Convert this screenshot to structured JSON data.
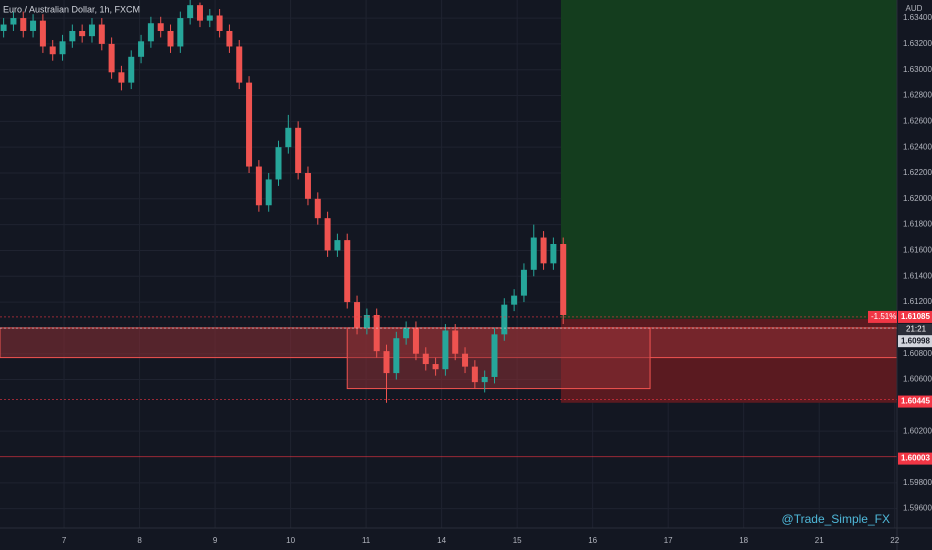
{
  "chart_data": {
    "type": "candlestick",
    "title": "Euro / Australian Dollar, 1h, FXCM",
    "currency": "AUD",
    "watermark": "@Trade_Simple_FX",
    "up_color": "#26a69a",
    "down_color": "#ef5350",
    "x": [
      0.2,
      0.33,
      0.46,
      0.59,
      0.72,
      0.85,
      0.98,
      1.11,
      1.24,
      1.37,
      1.5,
      1.63,
      1.76,
      1.89,
      2.02,
      2.15,
      2.28,
      2.41,
      2.54,
      2.67,
      2.8,
      2.93,
      3.06,
      3.19,
      3.32,
      3.45,
      3.58,
      3.71,
      3.84,
      3.97,
      4.1,
      4.23,
      4.36,
      4.49,
      4.62,
      4.75,
      4.88,
      5.01,
      5.14,
      5.27,
      5.4,
      5.53,
      5.66,
      5.79,
      5.92,
      6.05,
      6.18,
      6.31,
      6.44,
      6.57,
      6.7,
      6.83,
      6.96,
      7.09,
      7.22,
      7.35,
      7.48,
      7.61
    ],
    "open": [
      1.633,
      1.6335,
      1.634,
      1.633,
      1.6338,
      1.6318,
      1.6312,
      1.6322,
      1.633,
      1.6326,
      1.6335,
      1.632,
      1.6298,
      1.629,
      1.631,
      1.6322,
      1.6336,
      1.633,
      1.6318,
      1.634,
      1.635,
      1.6338,
      1.6342,
      1.633,
      1.6318,
      1.629,
      1.6225,
      1.6195,
      1.6215,
      1.624,
      1.6255,
      1.622,
      1.62,
      1.6185,
      1.616,
      1.6168,
      1.612,
      1.61,
      1.611,
      1.6082,
      1.6065,
      1.6092,
      1.61,
      1.608,
      1.6072,
      1.6068,
      1.6098,
      1.608,
      1.607,
      1.6058,
      1.6062,
      1.6095,
      1.6118,
      1.6125,
      1.6145,
      1.617,
      1.615,
      1.6165
    ],
    "high": [
      1.634,
      1.6345,
      1.6345,
      1.6343,
      1.6343,
      1.6323,
      1.6327,
      1.6335,
      1.6335,
      1.634,
      1.634,
      1.6325,
      1.6303,
      1.6315,
      1.6327,
      1.6341,
      1.6341,
      1.6335,
      1.6345,
      1.6354,
      1.6352,
      1.6347,
      1.6347,
      1.6335,
      1.6323,
      1.6295,
      1.623,
      1.622,
      1.6245,
      1.6265,
      1.626,
      1.6225,
      1.6205,
      1.619,
      1.6173,
      1.6173,
      1.6125,
      1.6115,
      1.6115,
      1.6087,
      1.6097,
      1.6105,
      1.6105,
      1.6085,
      1.6077,
      1.6103,
      1.6103,
      1.6085,
      1.6075,
      1.6067,
      1.61,
      1.6123,
      1.613,
      1.615,
      1.618,
      1.6175,
      1.617,
      1.617
    ],
    "low": [
      1.6325,
      1.633,
      1.6325,
      1.6325,
      1.6313,
      1.6307,
      1.6307,
      1.6317,
      1.6321,
      1.6321,
      1.6315,
      1.6293,
      1.6284,
      1.6285,
      1.6305,
      1.6317,
      1.6325,
      1.6313,
      1.6313,
      1.6335,
      1.6333,
      1.6333,
      1.6325,
      1.6313,
      1.6285,
      1.622,
      1.619,
      1.619,
      1.621,
      1.6235,
      1.6215,
      1.6195,
      1.618,
      1.6155,
      1.6155,
      1.6115,
      1.6095,
      1.6095,
      1.6077,
      1.6042,
      1.606,
      1.6087,
      1.6075,
      1.6067,
      1.6063,
      1.6063,
      1.6075,
      1.6065,
      1.6053,
      1.605,
      1.6057,
      1.609,
      1.6113,
      1.612,
      1.614,
      1.6145,
      1.6145,
      1.6103
    ],
    "close": [
      1.6335,
      1.634,
      1.633,
      1.6338,
      1.6318,
      1.6312,
      1.6322,
      1.633,
      1.6326,
      1.6335,
      1.632,
      1.6298,
      1.629,
      1.631,
      1.6322,
      1.6336,
      1.633,
      1.6318,
      1.634,
      1.635,
      1.6338,
      1.6342,
      1.633,
      1.6318,
      1.629,
      1.6225,
      1.6195,
      1.6215,
      1.624,
      1.6255,
      1.622,
      1.62,
      1.6185,
      1.616,
      1.6168,
      1.612,
      1.61,
      1.611,
      1.6082,
      1.6065,
      1.6092,
      1.61,
      1.608,
      1.6072,
      1.6068,
      1.6098,
      1.608,
      1.607,
      1.6058,
      1.6062,
      1.6095,
      1.6118,
      1.6125,
      1.6145,
      1.617,
      1.615,
      1.6165,
      1.611
    ],
    "xlim": [
      0.152,
      12.03
    ],
    "ylim": [
      1.5945,
      1.6354
    ],
    "xticks": [
      {
        "value": 1,
        "label": "7"
      },
      {
        "value": 2,
        "label": "8"
      },
      {
        "value": 3,
        "label": "9"
      },
      {
        "value": 4,
        "label": "10"
      },
      {
        "value": 5,
        "label": "11"
      },
      {
        "value": 6,
        "label": "14"
      },
      {
        "value": 7,
        "label": "15"
      },
      {
        "value": 8,
        "label": "16"
      },
      {
        "value": 9,
        "label": "17"
      },
      {
        "value": 10,
        "label": "18"
      },
      {
        "value": 11,
        "label": "21"
      },
      {
        "value": 12,
        "label": "22"
      }
    ],
    "yticks": [
      {
        "value": 1.634,
        "label": "1.63400"
      },
      {
        "value": 1.632,
        "label": "1.63200"
      },
      {
        "value": 1.63,
        "label": "1.63000"
      },
      {
        "value": 1.628,
        "label": "1.62800"
      },
      {
        "value": 1.626,
        "label": "1.62600"
      },
      {
        "value": 1.624,
        "label": "1.62400"
      },
      {
        "value": 1.622,
        "label": "1.62200"
      },
      {
        "value": 1.62,
        "label": "1.62000"
      },
      {
        "value": 1.618,
        "label": "1.61800"
      },
      {
        "value": 1.616,
        "label": "1.61600"
      },
      {
        "value": 1.614,
        "label": "1.61400"
      },
      {
        "value": 1.612,
        "label": "1.61200"
      },
      {
        "value": 1.608,
        "label": "1.60800"
      },
      {
        "value": 1.606,
        "label": "1.60600"
      },
      {
        "value": 1.602,
        "label": "1.60200"
      },
      {
        "value": 1.598,
        "label": "1.59800"
      },
      {
        "value": 1.596,
        "label": "1.59600"
      }
    ],
    "grid": true,
    "zones": [
      {
        "y": [
          1.6077,
          1.61
        ],
        "color": "#8c2f35"
      },
      {
        "x": [
          4.75,
          8.76
        ],
        "y": [
          1.6053,
          1.61
        ],
        "color": "#8c2f35"
      }
    ],
    "position": {
      "x_start": 7.58,
      "entry": 1.6107,
      "target": 1.6354,
      "stop": 1.6042,
      "profit_color": "#143d1e",
      "loss_color": "#5a1a20"
    },
    "price_labels": [
      {
        "value": 1.61085,
        "color": "#f23645"
      },
      {
        "value": 1.60998,
        "color": "#d1d4dc"
      },
      {
        "value": 1.60445,
        "color": "#f23645"
      },
      {
        "value": 1.60003,
        "color": "#f23645"
      }
    ],
    "change": {
      "value": -1.51,
      "label": "-1.51%"
    },
    "countdown": "21:21"
  }
}
